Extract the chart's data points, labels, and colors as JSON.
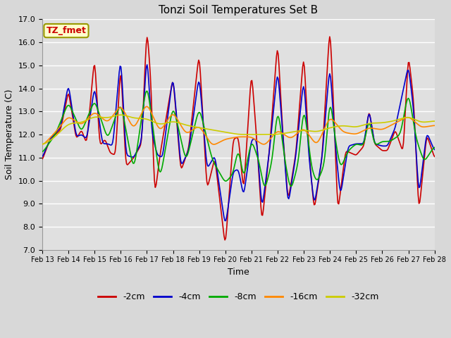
{
  "title": "Tonzi Soil Temperatures Set B",
  "xlabel": "Time",
  "ylabel": "Soil Temperature (C)",
  "ylim": [
    7.0,
    17.0
  ],
  "yticks": [
    7.0,
    8.0,
    9.0,
    10.0,
    11.0,
    12.0,
    13.0,
    14.0,
    15.0,
    16.0,
    17.0
  ],
  "x_labels": [
    "Feb 13",
    "Feb 14",
    "Feb 15",
    "Feb 16",
    "Feb 17",
    "Feb 18",
    "Feb 19",
    "Feb 20",
    "Feb 21",
    "Feb 22",
    "Feb 23",
    "Feb 24",
    "Feb 25",
    "Feb 26",
    "Feb 27",
    "Feb 28"
  ],
  "legend_labels": [
    "-2cm",
    "-4cm",
    "-8cm",
    "-16cm",
    "-32cm"
  ],
  "line_colors": [
    "#cc0000",
    "#0000cc",
    "#00aa00",
    "#ff8800",
    "#cccc00"
  ],
  "line_widths": [
    1.2,
    1.2,
    1.2,
    1.2,
    1.2
  ],
  "annotation_text": "TZ_fmet",
  "annotation_color": "#cc0000",
  "annotation_bg": "#ffffcc",
  "annotation_border": "#999900",
  "fig_bg_color": "#d8d8d8",
  "plot_bg_color": "#e0e0e0",
  "grid_color": "#ffffff",
  "title_fontsize": 11,
  "axis_fontsize": 9,
  "tick_fontsize": 8,
  "figsize": [
    6.4,
    4.8
  ],
  "dpi": 100
}
